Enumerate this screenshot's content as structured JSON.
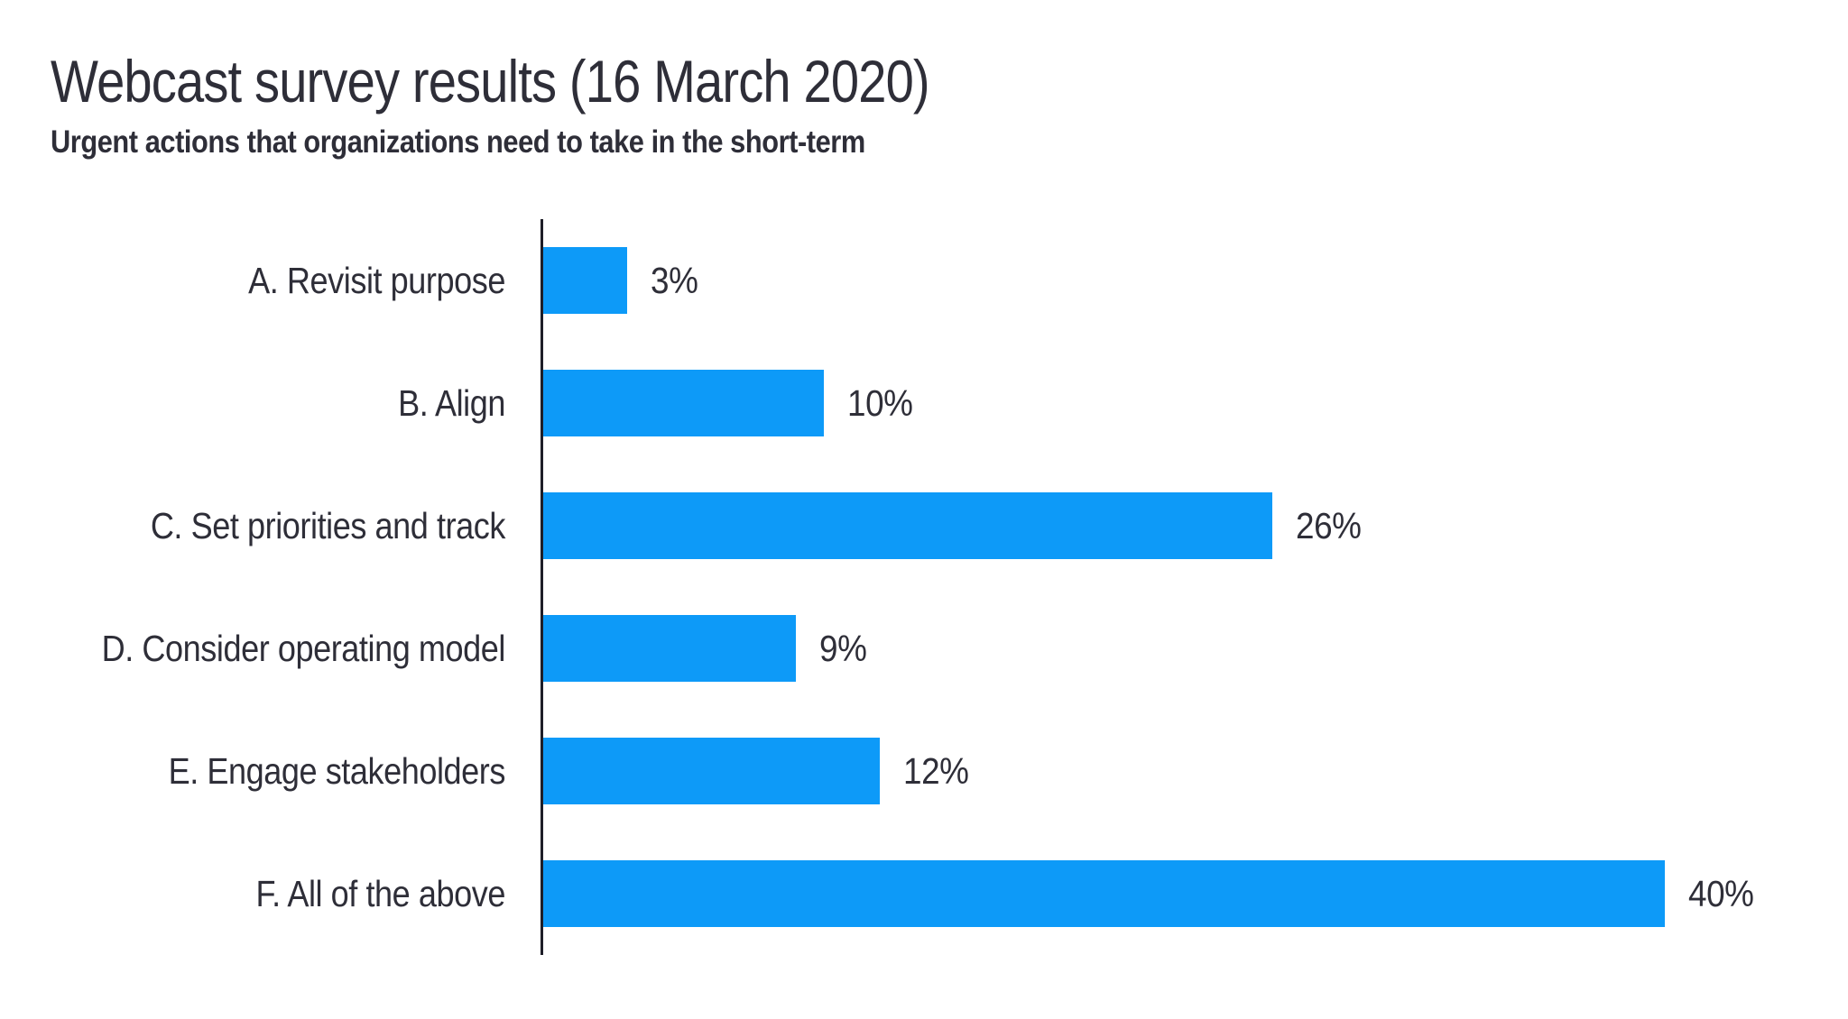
{
  "header": {
    "title": "Webcast survey results (16 March 2020)",
    "subtitle": "Urgent actions that organizations need to take in the short-term"
  },
  "colors": {
    "bar": "#0D9AF8",
    "text": "#2E2E38",
    "axis": "#1E1E28",
    "background": "#FFFFFF"
  },
  "chart_data": {
    "type": "bar",
    "orientation": "horizontal",
    "title": "Webcast survey results (16 March 2020)",
    "subtitle": "Urgent actions that organizations need to take in the short-term",
    "categories": [
      "A. Revisit purpose",
      "B. Align",
      "C. Set priorities and track",
      "D. Consider operating model",
      "E. Engage stakeholders",
      "F. All of the above"
    ],
    "values": [
      3,
      10,
      26,
      9,
      12,
      40
    ],
    "value_labels": [
      "3%",
      "10%",
      "26%",
      "9%",
      "12%",
      "40%"
    ],
    "value_suffix": "%",
    "xlim": [
      0,
      40
    ],
    "grid": false,
    "legend": false,
    "bar_color": "#0D9AF8"
  }
}
